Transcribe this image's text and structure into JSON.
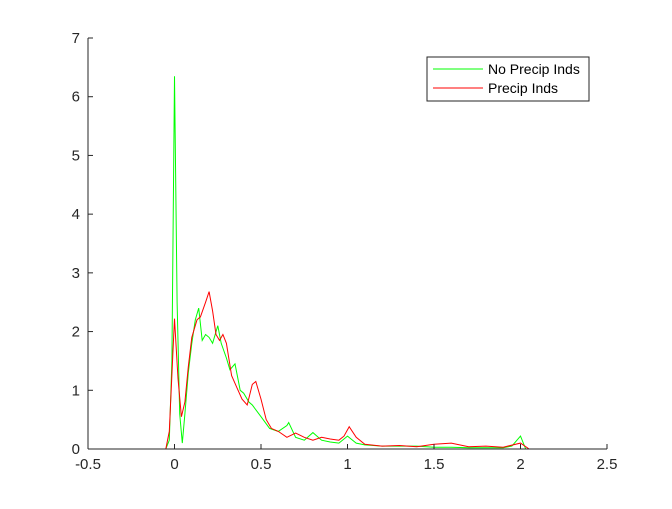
{
  "chart_data": {
    "type": "line",
    "title": "",
    "xlabel": "",
    "ylabel": "",
    "xlim": [
      -0.5,
      2.5
    ],
    "ylim": [
      0,
      7
    ],
    "xticks": [
      -0.5,
      0,
      0.5,
      1,
      1.5,
      2,
      2.5
    ],
    "xtick_labels": [
      "-0.5",
      "0",
      "0.5",
      "1",
      "1.5",
      "2",
      "2.5"
    ],
    "yticks": [
      0,
      1,
      2,
      3,
      4,
      5,
      6,
      7
    ],
    "ytick_labels": [
      "0",
      "1",
      "2",
      "3",
      "4",
      "5",
      "6",
      "7"
    ],
    "grid": false,
    "legend_position": "top-right",
    "series": [
      {
        "name": "No Precip Inds",
        "color": "#00ff00",
        "points": [
          [
            -0.05,
            0.0
          ],
          [
            -0.03,
            0.15
          ],
          [
            -0.015,
            1.5
          ],
          [
            0.0,
            6.35
          ],
          [
            0.015,
            2.5
          ],
          [
            0.03,
            0.6
          ],
          [
            0.045,
            0.1
          ],
          [
            0.06,
            0.6
          ],
          [
            0.08,
            1.3
          ],
          [
            0.1,
            1.8
          ],
          [
            0.12,
            2.2
          ],
          [
            0.14,
            2.4
          ],
          [
            0.16,
            1.85
          ],
          [
            0.18,
            1.95
          ],
          [
            0.2,
            1.9
          ],
          [
            0.22,
            1.8
          ],
          [
            0.25,
            2.1
          ],
          [
            0.27,
            1.8
          ],
          [
            0.3,
            1.55
          ],
          [
            0.32,
            1.35
          ],
          [
            0.35,
            1.45
          ],
          [
            0.38,
            1.0
          ],
          [
            0.4,
            0.95
          ],
          [
            0.43,
            0.8
          ],
          [
            0.45,
            0.75
          ],
          [
            0.5,
            0.55
          ],
          [
            0.55,
            0.35
          ],
          [
            0.6,
            0.3
          ],
          [
            0.65,
            0.4
          ],
          [
            0.66,
            0.45
          ],
          [
            0.7,
            0.2
          ],
          [
            0.75,
            0.15
          ],
          [
            0.8,
            0.28
          ],
          [
            0.85,
            0.15
          ],
          [
            0.9,
            0.12
          ],
          [
            0.95,
            0.1
          ],
          [
            1.0,
            0.22
          ],
          [
            1.05,
            0.1
          ],
          [
            1.1,
            0.07
          ],
          [
            1.2,
            0.05
          ],
          [
            1.3,
            0.05
          ],
          [
            1.4,
            0.05
          ],
          [
            1.5,
            0.03
          ],
          [
            1.6,
            0.03
          ],
          [
            1.7,
            0.02
          ],
          [
            1.8,
            0.02
          ],
          [
            1.9,
            0.02
          ],
          [
            1.95,
            0.05
          ],
          [
            2.0,
            0.22
          ],
          [
            2.03,
            0.0
          ]
        ]
      },
      {
        "name": "Precip Inds",
        "color": "#ff0000",
        "points": [
          [
            -0.05,
            0.0
          ],
          [
            -0.03,
            0.3
          ],
          [
            -0.01,
            1.6
          ],
          [
            0.0,
            2.22
          ],
          [
            0.02,
            1.2
          ],
          [
            0.04,
            0.55
          ],
          [
            0.06,
            0.8
          ],
          [
            0.08,
            1.4
          ],
          [
            0.1,
            1.9
          ],
          [
            0.13,
            2.2
          ],
          [
            0.15,
            2.25
          ],
          [
            0.18,
            2.5
          ],
          [
            0.2,
            2.68
          ],
          [
            0.22,
            2.35
          ],
          [
            0.24,
            1.95
          ],
          [
            0.26,
            1.85
          ],
          [
            0.28,
            1.95
          ],
          [
            0.3,
            1.8
          ],
          [
            0.33,
            1.25
          ],
          [
            0.36,
            1.05
          ],
          [
            0.39,
            0.85
          ],
          [
            0.42,
            0.75
          ],
          [
            0.45,
            1.1
          ],
          [
            0.47,
            1.15
          ],
          [
            0.5,
            0.85
          ],
          [
            0.53,
            0.5
          ],
          [
            0.56,
            0.35
          ],
          [
            0.6,
            0.3
          ],
          [
            0.65,
            0.2
          ],
          [
            0.7,
            0.27
          ],
          [
            0.75,
            0.2
          ],
          [
            0.8,
            0.15
          ],
          [
            0.85,
            0.2
          ],
          [
            0.9,
            0.17
          ],
          [
            0.95,
            0.15
          ],
          [
            0.98,
            0.22
          ],
          [
            1.01,
            0.38
          ],
          [
            1.05,
            0.2
          ],
          [
            1.1,
            0.08
          ],
          [
            1.2,
            0.05
          ],
          [
            1.3,
            0.06
          ],
          [
            1.4,
            0.04
          ],
          [
            1.5,
            0.08
          ],
          [
            1.6,
            0.1
          ],
          [
            1.7,
            0.04
          ],
          [
            1.8,
            0.05
          ],
          [
            1.9,
            0.03
          ],
          [
            2.0,
            0.1
          ],
          [
            2.05,
            0.0
          ]
        ]
      }
    ]
  }
}
